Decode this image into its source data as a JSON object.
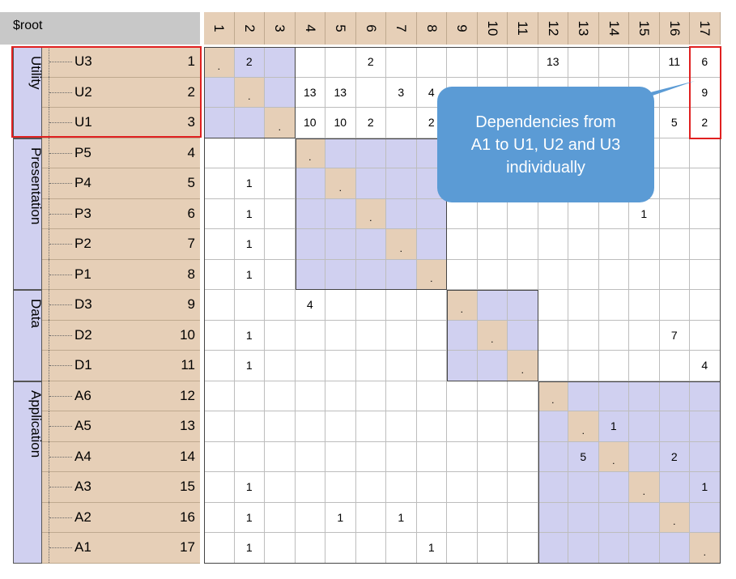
{
  "root_label": "$root",
  "groups": [
    {
      "label": "Utility",
      "start": 0,
      "count": 3
    },
    {
      "label": "Presentation",
      "start": 3,
      "count": 5
    },
    {
      "label": "Data",
      "start": 8,
      "count": 3
    },
    {
      "label": "Application",
      "start": 11,
      "count": 6
    }
  ],
  "rows": [
    {
      "name": "U3",
      "num": "1"
    },
    {
      "name": "U2",
      "num": "2"
    },
    {
      "name": "U1",
      "num": "3"
    },
    {
      "name": "P5",
      "num": "4"
    },
    {
      "name": "P4",
      "num": "5"
    },
    {
      "name": "P3",
      "num": "6"
    },
    {
      "name": "P2",
      "num": "7"
    },
    {
      "name": "P1",
      "num": "8"
    },
    {
      "name": "D3",
      "num": "9"
    },
    {
      "name": "D2",
      "num": "10"
    },
    {
      "name": "D1",
      "num": "11"
    },
    {
      "name": "A6",
      "num": "12"
    },
    {
      "name": "A5",
      "num": "13"
    },
    {
      "name": "A4",
      "num": "14"
    },
    {
      "name": "A3",
      "num": "15"
    },
    {
      "name": "A2",
      "num": "16"
    },
    {
      "name": "A1",
      "num": "17"
    }
  ],
  "columns": [
    "1",
    "2",
    "3",
    "4",
    "5",
    "6",
    "7",
    "8",
    "9",
    "10",
    "11",
    "12",
    "13",
    "14",
    "15",
    "16",
    "17"
  ],
  "diagonal_mark": ".",
  "cells": [
    {
      "r": 0,
      "c": 1,
      "v": "2"
    },
    {
      "r": 0,
      "c": 5,
      "v": "2"
    },
    {
      "r": 0,
      "c": 11,
      "v": "13"
    },
    {
      "r": 0,
      "c": 15,
      "v": "11"
    },
    {
      "r": 0,
      "c": 16,
      "v": "6"
    },
    {
      "r": 1,
      "c": 3,
      "v": "13"
    },
    {
      "r": 1,
      "c": 4,
      "v": "13"
    },
    {
      "r": 1,
      "c": 6,
      "v": "3"
    },
    {
      "r": 1,
      "c": 7,
      "v": "4"
    },
    {
      "r": 1,
      "c": 16,
      "v": "9"
    },
    {
      "r": 2,
      "c": 3,
      "v": "10"
    },
    {
      "r": 2,
      "c": 4,
      "v": "10"
    },
    {
      "r": 2,
      "c": 5,
      "v": "2"
    },
    {
      "r": 2,
      "c": 7,
      "v": "2"
    },
    {
      "r": 2,
      "c": 15,
      "v": "5"
    },
    {
      "r": 2,
      "c": 16,
      "v": "2"
    },
    {
      "r": 4,
      "c": 1,
      "v": "1"
    },
    {
      "r": 5,
      "c": 1,
      "v": "1"
    },
    {
      "r": 5,
      "c": 14,
      "v": "1"
    },
    {
      "r": 6,
      "c": 1,
      "v": "1"
    },
    {
      "r": 7,
      "c": 1,
      "v": "1"
    },
    {
      "r": 8,
      "c": 3,
      "v": "4"
    },
    {
      "r": 9,
      "c": 1,
      "v": "1"
    },
    {
      "r": 9,
      "c": 15,
      "v": "7"
    },
    {
      "r": 10,
      "c": 1,
      "v": "1"
    },
    {
      "r": 10,
      "c": 16,
      "v": "4"
    },
    {
      "r": 12,
      "c": 13,
      "v": "1"
    },
    {
      "r": 13,
      "c": 12,
      "v": "5"
    },
    {
      "r": 13,
      "c": 15,
      "v": "2"
    },
    {
      "r": 14,
      "c": 1,
      "v": "1"
    },
    {
      "r": 14,
      "c": 16,
      "v": "1"
    },
    {
      "r": 15,
      "c": 1,
      "v": "1"
    },
    {
      "r": 15,
      "c": 4,
      "v": "1"
    },
    {
      "r": 15,
      "c": 6,
      "v": "1"
    },
    {
      "r": 16,
      "c": 1,
      "v": "1"
    },
    {
      "r": 16,
      "c": 7,
      "v": "1"
    }
  ],
  "callout": {
    "line1": "Dependencies from",
    "line2": "A1 to U1, U2 and U3",
    "line3": "individually"
  },
  "colors": {
    "header_tan": "#e6cfb7",
    "block_lavender": "#d0d0f0",
    "highlight_red": "#e02020",
    "callout_blue": "#5b9bd5"
  }
}
